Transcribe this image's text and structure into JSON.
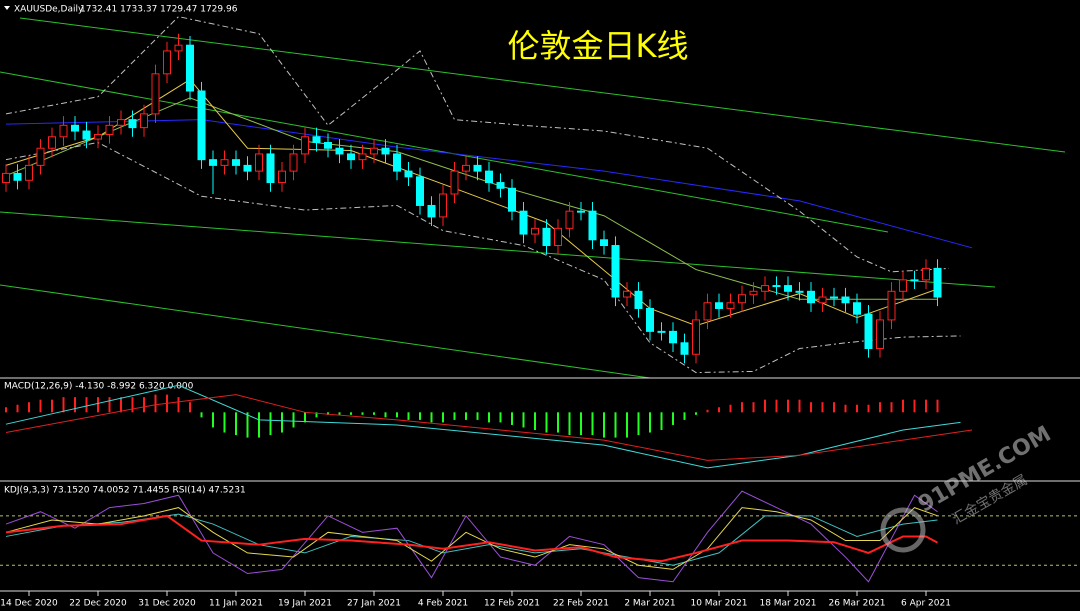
{
  "chart_data": [
    {
      "type": "candlestick",
      "title": "伦敦金日K线",
      "symbol": "XAUUSDe,Daily",
      "quote": "1732.41 1733.37 1729.47 1729.96",
      "categories": [
        null,
        null,
        "14 Dec 2020",
        null,
        null,
        null,
        null,
        null,
        "22 Dec 2020",
        null,
        null,
        null,
        null,
        null,
        "31 Dec 2020",
        null,
        null,
        null,
        null,
        null,
        "11 Jan 2021",
        null,
        null,
        null,
        null,
        null,
        "19 Jan 2021",
        null,
        null,
        null,
        null,
        null,
        "27 Jan 2021",
        null,
        null,
        null,
        null,
        null,
        "4 Feb 2021",
        null,
        null,
        null,
        null,
        null,
        "12 Feb 2021",
        null,
        null,
        null,
        null,
        null,
        "22 Feb 2021",
        null,
        null,
        null,
        null,
        null,
        "2 Mar 2021",
        null,
        null,
        null,
        null,
        null,
        "10 Mar 2021",
        null,
        null,
        null,
        null,
        null,
        "18 Mar 2021",
        null,
        null,
        null,
        null,
        null,
        "26 Mar 2021",
        null,
        null,
        null,
        null,
        null,
        "6 Apr 2021",
        null
      ],
      "open": [
        1830,
        1838,
        1832,
        1845,
        1860,
        1870,
        1880,
        1875,
        1868,
        1872,
        1880,
        1885,
        1878,
        1890,
        1925,
        1945,
        1950,
        1910,
        1850,
        1845,
        1850,
        1845,
        1840,
        1855,
        1830,
        1840,
        1855,
        1870,
        1865,
        1860,
        1855,
        1850,
        1855,
        1860,
        1855,
        1840,
        1835,
        1810,
        1800,
        1820,
        1840,
        1845,
        1840,
        1830,
        1825,
        1805,
        1785,
        1790,
        1775,
        1790,
        1805,
        1805,
        1780,
        1775,
        1730,
        1735,
        1720,
        1700,
        1700,
        1690,
        1680,
        1710,
        1725,
        1720,
        1725,
        1732,
        1735,
        1740,
        1740,
        1735,
        1735,
        1725,
        1730,
        1730,
        1725,
        1715,
        1685,
        1710,
        1735,
        1745,
        1745,
        1755
      ],
      "high": [
        1846,
        1846,
        1853,
        1868,
        1878,
        1888,
        1888,
        1883,
        1880,
        1888,
        1893,
        1893,
        1898,
        1933,
        1953,
        1960,
        1958,
        1918,
        1858,
        1858,
        1858,
        1853,
        1863,
        1863,
        1848,
        1863,
        1878,
        1878,
        1873,
        1868,
        1863,
        1863,
        1868,
        1868,
        1863,
        1848,
        1843,
        1818,
        1828,
        1848,
        1853,
        1853,
        1848,
        1838,
        1833,
        1813,
        1798,
        1798,
        1798,
        1813,
        1813,
        1813,
        1788,
        1783,
        1743,
        1743,
        1728,
        1708,
        1708,
        1698,
        1718,
        1733,
        1733,
        1733,
        1740,
        1743,
        1748,
        1748,
        1748,
        1743,
        1743,
        1738,
        1738,
        1738,
        1733,
        1723,
        1718,
        1743,
        1753,
        1753,
        1763,
        1763
      ],
      "low": [
        1822,
        1824,
        1824,
        1837,
        1852,
        1862,
        1867,
        1860,
        1860,
        1864,
        1872,
        1870,
        1870,
        1882,
        1917,
        1937,
        1902,
        1842,
        1820,
        1837,
        1837,
        1832,
        1832,
        1822,
        1822,
        1832,
        1847,
        1857,
        1852,
        1847,
        1842,
        1842,
        1847,
        1847,
        1832,
        1827,
        1802,
        1792,
        1792,
        1812,
        1832,
        1832,
        1822,
        1817,
        1797,
        1777,
        1777,
        1767,
        1767,
        1782,
        1797,
        1772,
        1767,
        1722,
        1722,
        1712,
        1692,
        1692,
        1682,
        1672,
        1672,
        1702,
        1712,
        1712,
        1717,
        1724,
        1727,
        1732,
        1727,
        1727,
        1717,
        1717,
        1722,
        1717,
        1707,
        1677,
        1677,
        1702,
        1727,
        1737,
        1737,
        1722
      ],
      "close": [
        1838,
        1832,
        1845,
        1860,
        1870,
        1880,
        1875,
        1868,
        1872,
        1880,
        1885,
        1878,
        1890,
        1925,
        1945,
        1950,
        1910,
        1850,
        1845,
        1850,
        1845,
        1840,
        1855,
        1830,
        1840,
        1855,
        1870,
        1865,
        1860,
        1855,
        1850,
        1855,
        1860,
        1855,
        1840,
        1835,
        1810,
        1800,
        1820,
        1840,
        1845,
        1840,
        1830,
        1825,
        1805,
        1785,
        1790,
        1775,
        1790,
        1805,
        1805,
        1780,
        1775,
        1730,
        1735,
        1720,
        1700,
        1700,
        1690,
        1680,
        1710,
        1725,
        1720,
        1725,
        1732,
        1735,
        1740,
        1740,
        1735,
        1735,
        1725,
        1730,
        1730,
        1725,
        1715,
        1685,
        1710,
        1735,
        1745,
        1745,
        1755,
        1730
      ],
      "up_color": "#ff2020",
      "down_color": "#00ffff",
      "ylim": [
        1661,
        1986
      ],
      "lines": [
        {
          "color": "#2828ff",
          "x": [
            0,
            17,
            34,
            52,
            69,
            84
          ],
          "values": [
            1881,
            1885,
            1861,
            1840,
            1814,
            1773
          ]
        },
        {
          "color": "#8fbf4f",
          "x": [
            0,
            16,
            26,
            34,
            43,
            52,
            60,
            69,
            81
          ],
          "values": [
            1836,
            1904,
            1866,
            1857,
            1827,
            1801,
            1754,
            1728,
            1728
          ]
        },
        {
          "color": "#e6c84a",
          "x": [
            0,
            8,
            16,
            21,
            30,
            39,
            47,
            56,
            60,
            69,
            74,
            81
          ],
          "values": [
            1845,
            1870,
            1920,
            1860,
            1858,
            1825,
            1795,
            1720,
            1705,
            1733,
            1712,
            1737
          ]
        },
        {
          "color": "#c0c0c0",
          "dash": true,
          "x": [
            0,
            8,
            15,
            22,
            28,
            33,
            36,
            39,
            45,
            52,
            61,
            69,
            74,
            77,
            82
          ],
          "values": [
            1890,
            1905,
            1975,
            1960,
            1880,
            1920,
            1945,
            1885,
            1880,
            1875,
            1860,
            1805,
            1765,
            1752,
            1755
          ]
        },
        {
          "color": "#c0c0c0",
          "dash": true,
          "x": [
            0,
            8,
            17,
            26,
            34,
            38,
            45,
            52,
            56,
            60,
            65,
            69,
            73,
            78,
            83
          ],
          "values": [
            1850,
            1865,
            1818,
            1806,
            1810,
            1788,
            1775,
            1745,
            1690,
            1664,
            1665,
            1685,
            1690,
            1695,
            1696
          ]
        }
      ]
    },
    {
      "type": "macd",
      "label": "MACD(12,26,9) -4.130 -8.992 6.320 0.000",
      "values": [
        2,
        3,
        4,
        5,
        5,
        6,
        6,
        6,
        6,
        6,
        6,
        6,
        6,
        7,
        7,
        6,
        4,
        -2,
        -6,
        -8,
        -9,
        -10,
        -10,
        -9,
        -8,
        -6,
        -4,
        -2,
        -1,
        -1,
        -1,
        -1,
        -1,
        -2,
        -2,
        -3,
        -3,
        -4,
        -4,
        -3,
        -3,
        -3,
        -4,
        -4,
        -5,
        -6,
        -7,
        -8,
        -8,
        -9,
        -9,
        -9,
        -10,
        -10,
        -10,
        -9,
        -8,
        -7,
        -5,
        -3,
        -1,
        1,
        2,
        3,
        4,
        4,
        5,
        5,
        5,
        5,
        4,
        4,
        4,
        3,
        3,
        3,
        4,
        4,
        5,
        5,
        5,
        5
      ],
      "pos_color": "#ff2020",
      "neg_color": "#20ff20",
      "ylim": [
        -26,
        12
      ],
      "lines": [
        {
          "color": "#40d8d8",
          "x": [
            0,
            15,
            22,
            34,
            43,
            52,
            61,
            69,
            78,
            83
          ],
          "values": [
            -4.7,
            10.7,
            -3,
            -5,
            -9,
            -13,
            -22,
            -17,
            -7,
            -4
          ]
        },
        {
          "color": "#e02020",
          "x": [
            0,
            13,
            20,
            26,
            34,
            43,
            52,
            61,
            69,
            78,
            84
          ],
          "values": [
            -8,
            3,
            7,
            0,
            -3,
            -7,
            -11,
            -19,
            -17,
            -11,
            -7
          ]
        }
      ]
    },
    {
      "type": "line",
      "label": "KDJ(9,3,3) 73.1520 74.0052 71.4455  RSI(14) 47.5231",
      "ylim": [
        -10,
        115
      ],
      "levels": [
        80,
        20
      ],
      "level_color": "#b8c060",
      "lines": [
        {
          "color": "#40c0c0",
          "x": [
            0,
            5,
            10,
            15,
            18,
            22,
            26,
            30,
            35,
            38,
            42,
            46,
            50,
            54,
            58,
            62,
            66,
            70,
            74,
            78,
            81
          ],
          "values": [
            55,
            68,
            72,
            82,
            70,
            45,
            35,
            55,
            50,
            35,
            45,
            35,
            40,
            30,
            20,
            35,
            80,
            80,
            55,
            70,
            75
          ]
        },
        {
          "color": "#9b4fd8",
          "x": [
            0,
            3,
            6,
            9,
            12,
            15,
            18,
            21,
            24,
            28,
            31,
            34,
            37,
            40,
            43,
            46,
            49,
            52,
            55,
            58,
            61,
            64,
            67,
            70,
            73,
            75,
            79,
            81
          ],
          "values": [
            70,
            85,
            65,
            90,
            95,
            105,
            35,
            10,
            15,
            80,
            60,
            65,
            5,
            80,
            30,
            20,
            55,
            45,
            5,
            0,
            60,
            110,
            90,
            70,
            30,
            0,
            105,
            85
          ]
        },
        {
          "color": "#e6d84a",
          "x": [
            0,
            4,
            8,
            12,
            15,
            18,
            21,
            25,
            28,
            31,
            34,
            37,
            40,
            43,
            46,
            49,
            52,
            55,
            58,
            61,
            64,
            67,
            70,
            73,
            76,
            79,
            81
          ],
          "values": [
            60,
            75,
            70,
            80,
            90,
            60,
            35,
            30,
            60,
            55,
            50,
            25,
            60,
            40,
            30,
            45,
            40,
            20,
            15,
            40,
            90,
            85,
            75,
            50,
            50,
            90,
            80
          ]
        },
        {
          "color": "#ff2020",
          "width": 2,
          "x": [
            0,
            5,
            10,
            14,
            17,
            22,
            26,
            30,
            35,
            38,
            42,
            46,
            50,
            53,
            57,
            60,
            64,
            68,
            72,
            75,
            78,
            80,
            81
          ],
          "values": [
            60,
            68,
            70,
            80,
            50,
            45,
            52,
            50,
            45,
            40,
            48,
            38,
            42,
            30,
            25,
            35,
            50,
            50,
            48,
            35,
            55,
            55,
            47.5
          ]
        }
      ]
    }
  ],
  "watermark": {
    "brand": "91PME.COM",
    "name": "汇金宝贵金属"
  }
}
